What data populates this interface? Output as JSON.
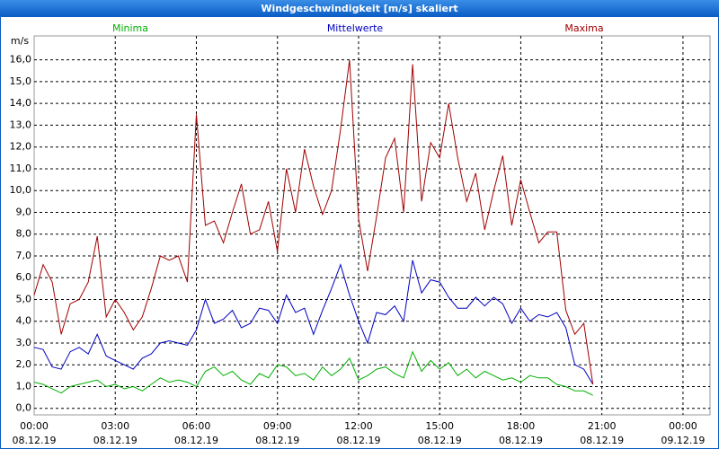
{
  "chart_data": {
    "type": "line",
    "title": "Windgeschwindigkeit [m/s] skaliert",
    "ylabel": "m/s",
    "x": [
      0,
      20,
      40,
      60,
      80,
      100,
      120,
      140,
      160,
      180,
      200,
      220,
      240,
      260,
      280,
      300,
      320,
      340,
      360,
      380,
      400,
      420,
      440,
      460,
      480,
      500,
      520,
      540,
      560,
      580,
      600,
      620,
      640,
      660,
      680,
      700,
      720,
      740,
      760,
      780,
      800,
      820,
      840,
      860,
      880,
      900,
      920,
      940,
      960,
      980,
      1000,
      1020,
      1040,
      1060,
      1080,
      1100,
      1120,
      1140,
      1160,
      1180,
      1200,
      1220,
      1240
    ],
    "series": [
      {
        "name": "Minima",
        "color": "#00b000",
        "values": [
          1.2,
          1.1,
          0.9,
          0.7,
          1.0,
          1.1,
          1.2,
          1.3,
          1.0,
          1.1,
          0.9,
          1.0,
          0.8,
          1.1,
          1.4,
          1.2,
          1.3,
          1.2,
          1.0,
          1.7,
          1.9,
          1.5,
          1.7,
          1.3,
          1.1,
          1.6,
          1.4,
          2.0,
          1.9,
          1.5,
          1.6,
          1.3,
          1.9,
          1.5,
          1.8,
          2.3,
          1.3,
          1.5,
          1.8,
          1.9,
          1.6,
          1.4,
          2.6,
          1.7,
          2.2,
          1.8,
          2.1,
          1.5,
          1.8,
          1.4,
          1.7,
          1.5,
          1.3,
          1.4,
          1.2,
          1.5,
          1.4,
          1.4,
          1.1,
          1.0,
          0.8,
          0.8,
          0.6
        ]
      },
      {
        "name": "Mittelwerte",
        "color": "#0000c0",
        "values": [
          2.8,
          2.7,
          1.9,
          1.8,
          2.6,
          2.8,
          2.5,
          3.4,
          2.4,
          2.2,
          2.0,
          1.8,
          2.3,
          2.5,
          3.0,
          3.1,
          3.0,
          2.9,
          3.6,
          5.0,
          3.9,
          4.1,
          4.5,
          3.7,
          3.9,
          4.6,
          4.5,
          3.9,
          5.2,
          4.4,
          4.6,
          3.4,
          4.5,
          5.5,
          6.6,
          5.2,
          4.0,
          3.0,
          4.4,
          4.3,
          4.7,
          4.0,
          6.8,
          5.3,
          5.9,
          5.8,
          5.1,
          4.6,
          4.6,
          5.1,
          4.7,
          5.1,
          4.8,
          3.9,
          4.6,
          4.0,
          4.3,
          4.2,
          4.4,
          3.7,
          2.0,
          1.8,
          1.1
        ]
      },
      {
        "name": "Maxima",
        "color": "#a00000",
        "values": [
          5.2,
          6.6,
          5.8,
          3.4,
          4.8,
          5.0,
          5.8,
          7.9,
          4.2,
          5.0,
          4.4,
          3.6,
          4.2,
          5.5,
          7.0,
          6.8,
          7.0,
          5.8,
          13.5,
          8.4,
          8.6,
          7.6,
          9.0,
          10.3,
          8.0,
          8.2,
          9.5,
          7.2,
          11.0,
          9.0,
          11.9,
          10.2,
          8.9,
          10.0,
          12.8,
          16.0,
          8.7,
          6.3,
          8.8,
          11.5,
          12.4,
          9.0,
          15.8,
          9.5,
          12.2,
          11.5,
          14.0,
          11.5,
          9.5,
          10.8,
          8.2,
          10.0,
          11.6,
          8.4,
          10.5,
          9.0,
          7.6,
          8.1,
          8.1,
          4.5,
          3.4,
          3.9,
          1.1
        ]
      }
    ],
    "xlim": [
      0,
      1500
    ],
    "xticks": [
      {
        "value": 0,
        "label": "00:00"
      },
      {
        "value": 180,
        "label": "03:00"
      },
      {
        "value": 360,
        "label": "06:00"
      },
      {
        "value": 540,
        "label": "09:00"
      },
      {
        "value": 720,
        "label": "12:00"
      },
      {
        "value": 900,
        "label": "15:00"
      },
      {
        "value": 1080,
        "label": "18:00"
      },
      {
        "value": 1260,
        "label": "21:00"
      },
      {
        "value": 1440,
        "label": "00:00"
      }
    ],
    "xtick_dates": [
      "08.12.19",
      "08.12.19",
      "08.12.19",
      "08.12.19",
      "08.12.19",
      "08.12.19",
      "08.12.19",
      "08.12.19",
      "09.12.19"
    ],
    "ylim": [
      -0.3,
      17.1
    ],
    "yticks": [
      {
        "value": 0,
        "label": "0,0"
      },
      {
        "value": 1,
        "label": "1,0"
      },
      {
        "value": 2,
        "label": "2,0"
      },
      {
        "value": 3,
        "label": "3,0"
      },
      {
        "value": 4,
        "label": "4,0"
      },
      {
        "value": 5,
        "label": "5,0"
      },
      {
        "value": 6,
        "label": "6,0"
      },
      {
        "value": 7,
        "label": "7,0"
      },
      {
        "value": 8,
        "label": "8,0"
      },
      {
        "value": 9,
        "label": "9,0"
      },
      {
        "value": 10,
        "label": "10,0"
      },
      {
        "value": 11,
        "label": "11,0"
      },
      {
        "value": 12,
        "label": "12,0"
      },
      {
        "value": 13,
        "label": "13,0"
      },
      {
        "value": 14,
        "label": "14,0"
      },
      {
        "value": 15,
        "label": "15,0"
      },
      {
        "value": 16,
        "label": "16,0"
      }
    ],
    "grid": true
  }
}
